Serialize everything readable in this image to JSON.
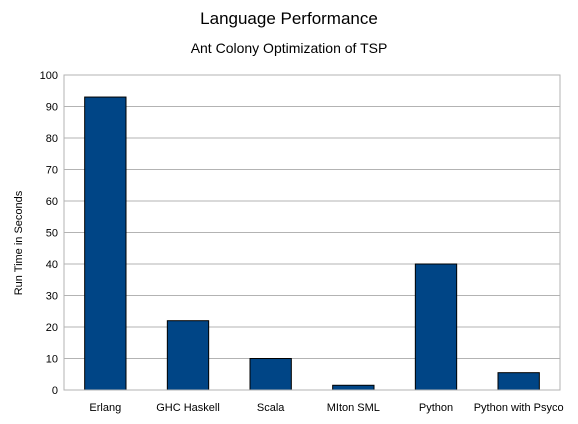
{
  "chart_data": {
    "type": "bar",
    "title": "Language Performance",
    "subtitle": "Ant Colony Optimization of TSP",
    "ylabel": "Run Time in Seconds",
    "xlabel": "",
    "categories": [
      "Erlang",
      "GHC Haskell",
      "Scala",
      "MIton SML",
      "Python",
      "Python with Psyco"
    ],
    "values": [
      93,
      22,
      10,
      1.5,
      40,
      5.5
    ],
    "ylim": [
      0,
      100
    ],
    "yticks": [
      0,
      10,
      20,
      30,
      40,
      50,
      60,
      70,
      80,
      90,
      100
    ],
    "grid": true,
    "legend": "none",
    "bar_color": "#004586"
  }
}
